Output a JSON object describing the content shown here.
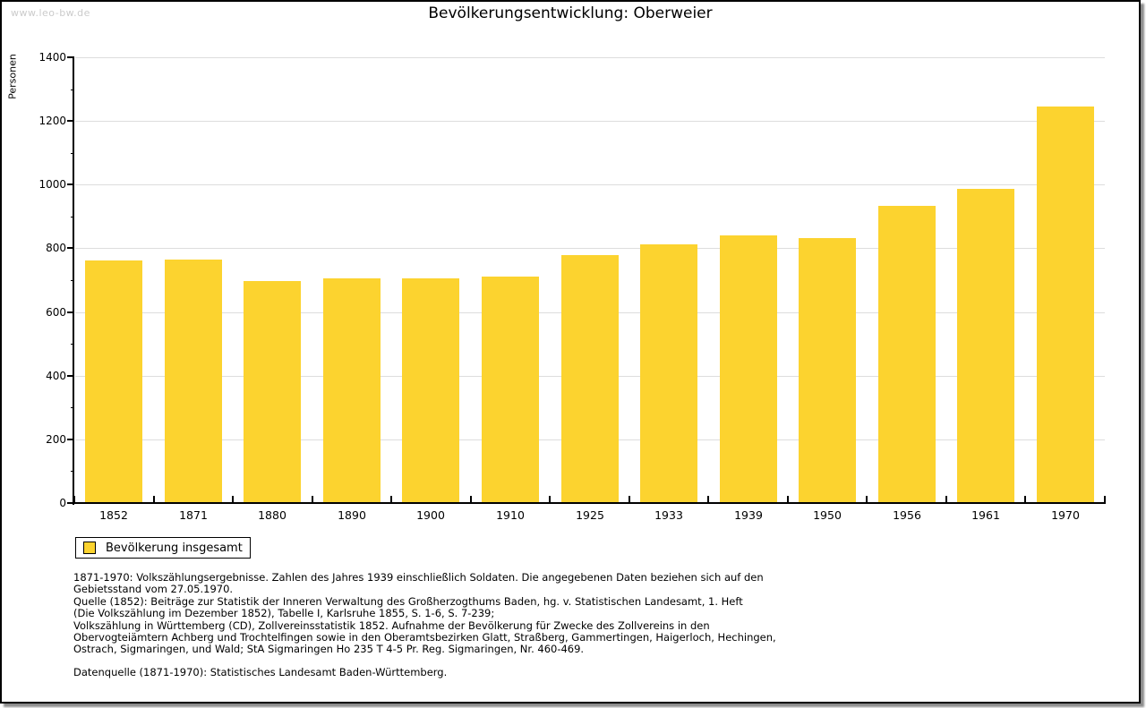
{
  "watermark": "www.leo-bw.de",
  "title": "Bevölkerungsentwicklung: Oberweier",
  "chart_data": {
    "type": "bar",
    "title": "Bevölkerungsentwicklung: Oberweier",
    "categories": [
      "1852",
      "1871",
      "1880",
      "1890",
      "1900",
      "1910",
      "1925",
      "1933",
      "1939",
      "1950",
      "1956",
      "1961",
      "1970"
    ],
    "values": [
      762,
      765,
      697,
      706,
      706,
      711,
      778,
      812,
      840,
      831,
      933,
      986,
      1244
    ],
    "xlabel": "",
    "ylabel": "Personen",
    "ylim": [
      0,
      1400
    ],
    "ytick_step": 200,
    "ytick_minor_step": 100,
    "grid": true,
    "bar_color": "#FCD32F",
    "gridline_color": "#dddddd",
    "legend": {
      "label": "Bevölkerung insgesamt",
      "swatch_color": "#FCD32F",
      "position": "bottom-left"
    }
  },
  "footer": {
    "lines": [
      "1871-1970: Volkszählungsergebnisse. Zahlen des Jahres 1939 einschließlich Soldaten. Die angegebenen Daten beziehen sich auf den",
      "Gebietsstand vom 27.05.1970.",
      "Quelle (1852): Beiträge zur Statistik der Inneren Verwaltung des Großherzogthums Baden, hg. v. Statistischen Landesamt, 1. Heft",
      "(Die Volkszählung im Dezember 1852), Tabelle I, Karlsruhe 1855, S. 1-6, S. 7-239;",
      "Volkszählung in Württemberg (CD), Zollvereinsstatistik 1852. Aufnahme der Bevölkerung für Zwecke des Zollvereins in den",
      "Obervogteiämtern Achberg und Trochtelfingen sowie in den Oberamtsbezirken Glatt, Straßberg, Gammertingen, Haigerloch, Hechingen,",
      "Ostrach, Sigmaringen, und Wald; StA Sigmaringen Ho 235 T 4-5 Pr. Reg. Sigmaringen, Nr. 460-469."
    ],
    "datenquelle": "Datenquelle (1871-1970): Statistisches Landesamt Baden-Württemberg."
  }
}
